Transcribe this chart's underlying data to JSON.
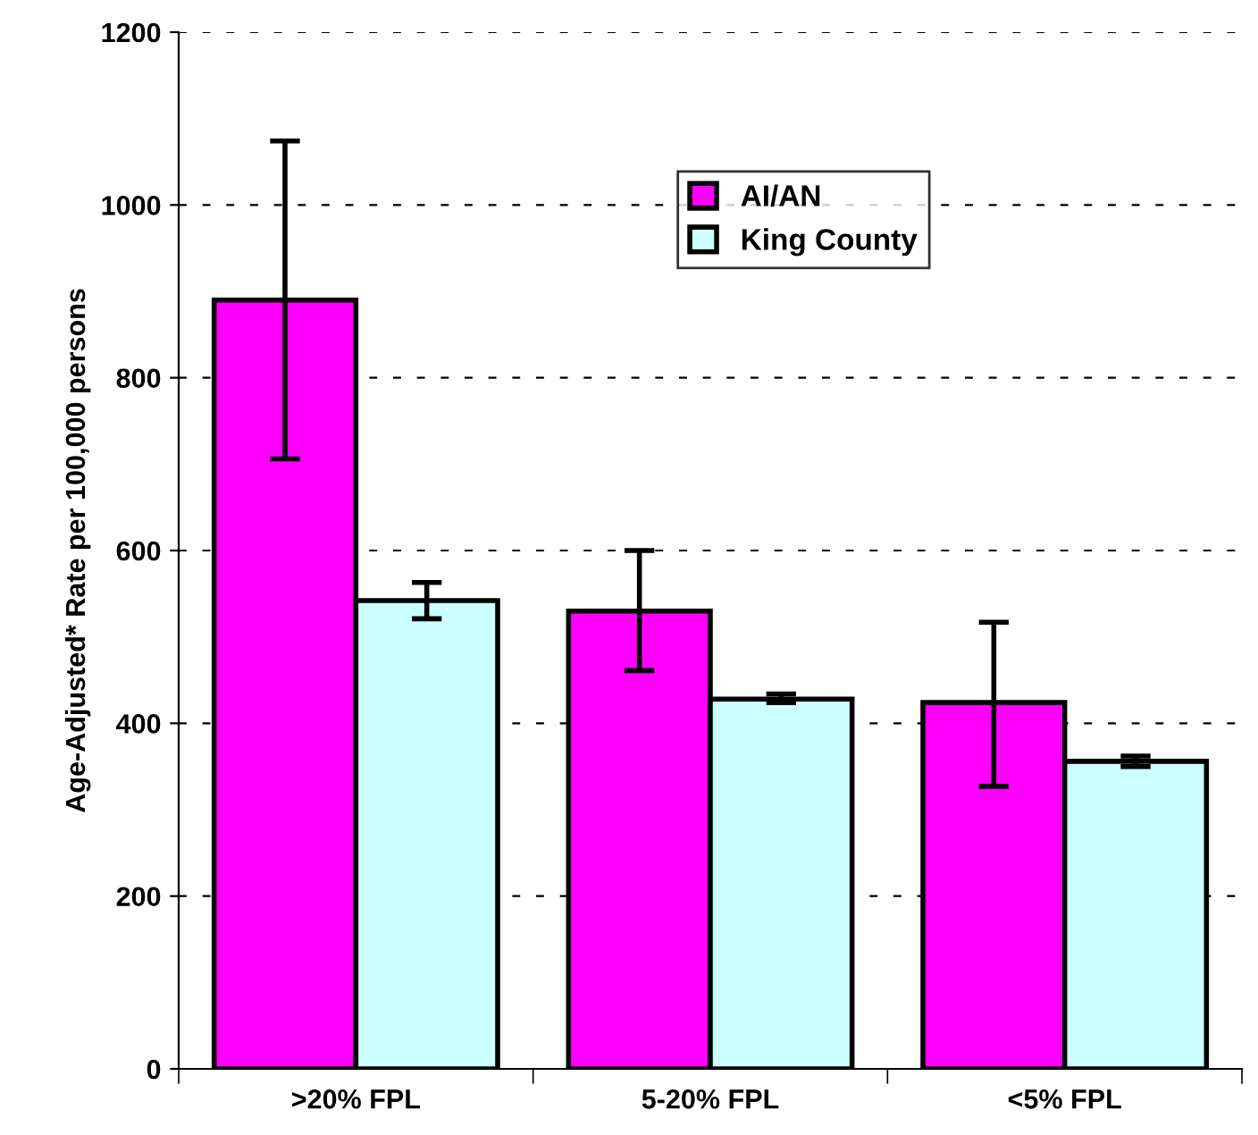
{
  "chart_data": {
    "type": "bar",
    "ylabel": "Age-Adjusted* Rate per 100,000 persons",
    "categories": [
      ">20% FPL",
      "5-20% FPL",
      "<5% FPL"
    ],
    "series": [
      {
        "name": "AI/AN",
        "color": "#ff00ff",
        "values": [
          890,
          530,
          424
        ],
        "errors": [
          [
            706,
            1074
          ],
          [
            461,
            600
          ],
          [
            327,
            517
          ]
        ]
      },
      {
        "name": "King County",
        "color": "#ccffff",
        "values": [
          542,
          428,
          356
        ],
        "errors": [
          [
            521,
            563
          ],
          [
            424,
            434
          ],
          [
            350,
            362
          ]
        ]
      }
    ],
    "ylim": [
      0,
      1200
    ],
    "yticks": [
      0,
      200,
      400,
      600,
      800,
      1000,
      1200
    ],
    "grid": "y",
    "legend": "top right"
  }
}
